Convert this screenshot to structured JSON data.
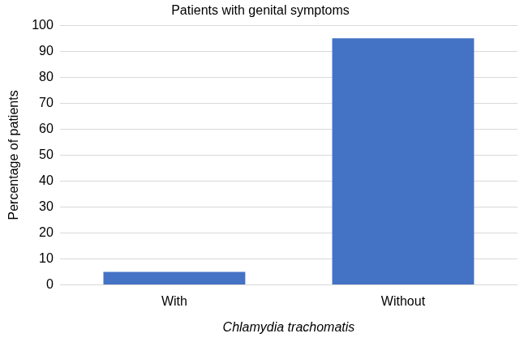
{
  "chart_data": {
    "type": "bar",
    "title": "Patients with genital symptoms",
    "categories": [
      "With",
      "Without"
    ],
    "values": [
      5,
      95
    ],
    "color": "#4472c4",
    "xlabel": "Chlamydia trachomatis",
    "ylabel": "Percentage of patients",
    "ylim": [
      0,
      100
    ],
    "yticks": [
      0,
      10,
      20,
      30,
      40,
      50,
      60,
      70,
      80,
      90,
      100
    ],
    "grid": true
  }
}
